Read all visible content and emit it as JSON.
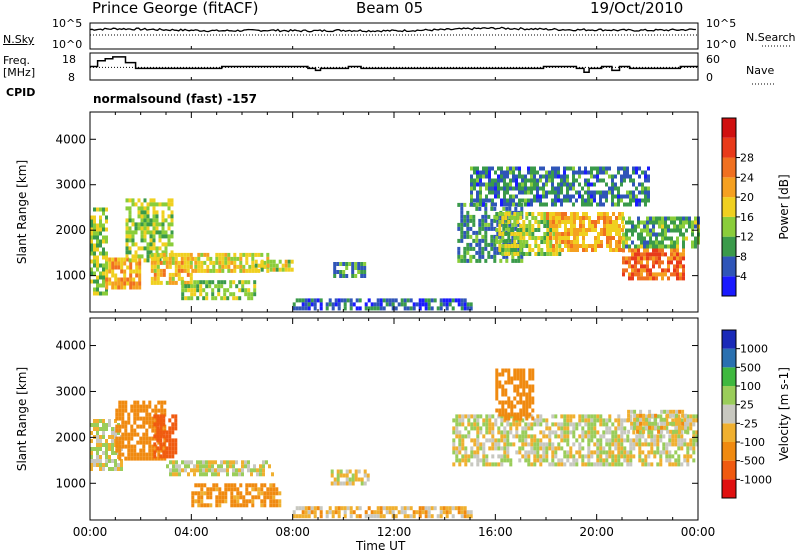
{
  "header": {
    "station": "Prince George (fitACF)",
    "beam": "Beam 05",
    "date": "19/Oct/2010"
  },
  "labels": {
    "nsky": "N.Sky",
    "nsearch": "N.Search",
    "freq_line1": "Freq.",
    "freq_line2": "[MHz]",
    "nave": "Nave",
    "cpid": "CPID",
    "cpid_value": "normalsound (fast) -157"
  },
  "colors": {
    "power": [
      "#1a1aff",
      "#2f55b8",
      "#3a9a4a",
      "#8acd3a",
      "#f0d020",
      "#f5a020",
      "#f07020",
      "#e83a1a",
      "#d01010"
    ],
    "velocity": [
      "#e01010",
      "#f05a10",
      "#f08a10",
      "#f0b030",
      "#c8c8c0",
      "#9acd5a",
      "#3fb83f",
      "#2a70b0",
      "#1a2ab8"
    ]
  },
  "chart_data": [
    {
      "type": "line",
      "panel": "noise",
      "left_ticks": [
        "10^5",
        "10^0"
      ],
      "right_ticks": [
        "10^5",
        "10^0"
      ],
      "series": [
        {
          "name": "N.Sky",
          "style": "solid"
        },
        {
          "name": "N.Search",
          "style": "dotted"
        }
      ],
      "x": [
        0,
        1,
        2,
        3,
        4,
        5,
        6,
        7,
        8,
        9,
        10,
        11,
        12,
        13,
        14,
        15,
        16,
        17,
        18,
        19,
        20,
        21,
        22,
        23,
        24
      ],
      "y_level": [
        0.75,
        0.78,
        0.76,
        0.74,
        0.72,
        0.7,
        0.71,
        0.72,
        0.7,
        0.7,
        0.72,
        0.7,
        0.7,
        0.72,
        0.74,
        0.78,
        0.8,
        0.78,
        0.76,
        0.74,
        0.74,
        0.72,
        0.72,
        0.73,
        0.75
      ]
    },
    {
      "type": "line",
      "panel": "frequency",
      "ylabel_left": "Freq. [MHz]",
      "ylabel_right": "Nave",
      "left_ticks": [
        "18",
        "8"
      ],
      "right_ticks": [
        "60",
        "0"
      ],
      "series": [
        {
          "name": "Freq.",
          "style": "solid",
          "steps": [
            [
              0,
              13
            ],
            [
              0.3,
              16
            ],
            [
              0.6,
              17
            ],
            [
              0.9,
              18
            ],
            [
              1.4,
              15
            ],
            [
              1.8,
              12
            ],
            [
              5.2,
              13
            ],
            [
              8.6,
              12
            ],
            [
              8.9,
              11
            ],
            [
              9.1,
              12
            ],
            [
              10.2,
              13
            ],
            [
              10.7,
              12
            ],
            [
              17.9,
              13
            ],
            [
              19.2,
              12
            ],
            [
              19.5,
              10
            ],
            [
              19.7,
              12
            ],
            [
              20.2,
              13
            ],
            [
              20.6,
              11
            ],
            [
              20.9,
              13
            ],
            [
              21.3,
              12
            ],
            [
              23.3,
              13
            ],
            [
              24,
              13
            ]
          ]
        },
        {
          "name": "Nave",
          "style": "dotted",
          "steps": [
            [
              0,
              28
            ],
            [
              24,
              28
            ]
          ]
        }
      ]
    },
    {
      "type": "heatmap",
      "panel": "power",
      "ylabel": "Slant Range [km]",
      "y_ticks": [
        1000,
        2000,
        3000,
        4000
      ],
      "ylim": [
        200,
        4600
      ],
      "colorbar_label": "Power [dB]",
      "colorbar_ticks": [
        4,
        8,
        12,
        16,
        20,
        24,
        28
      ],
      "x_ticks": [
        "00:00",
        "04:00",
        "08:00",
        "12:00",
        "16:00",
        "20:00",
        "00:00"
      ],
      "xlim_hours": [
        0,
        24
      ],
      "regions": [
        {
          "t0": 0.0,
          "t1": 0.6,
          "r0": 600,
          "r1": 2500,
          "p": 14
        },
        {
          "t0": 0.6,
          "t1": 2.0,
          "r0": 700,
          "r1": 1400,
          "p": 22
        },
        {
          "t0": 1.4,
          "t1": 3.2,
          "r0": 1300,
          "r1": 2700,
          "p": 15
        },
        {
          "t0": 2.4,
          "t1": 4.0,
          "r0": 800,
          "r1": 1500,
          "p": 20
        },
        {
          "t0": 4.0,
          "t1": 7.0,
          "r0": 1100,
          "r1": 1500,
          "p": 17
        },
        {
          "t0": 3.6,
          "t1": 6.5,
          "r0": 500,
          "r1": 900,
          "p": 14
        },
        {
          "t0": 6.5,
          "t1": 8.0,
          "r0": 1100,
          "r1": 1350,
          "p": 16
        },
        {
          "t0": 9.6,
          "t1": 10.8,
          "r0": 1000,
          "r1": 1300,
          "p": 9
        },
        {
          "t0": 8.0,
          "t1": 15.0,
          "r0": 250,
          "r1": 500,
          "p": 6
        },
        {
          "t0": 14.5,
          "t1": 17.0,
          "r0": 1300,
          "r1": 2600,
          "p": 9
        },
        {
          "t0": 16.0,
          "t1": 18.5,
          "r0": 1500,
          "r1": 2400,
          "p": 15
        },
        {
          "t0": 18.0,
          "t1": 21.0,
          "r0": 1600,
          "r1": 2400,
          "p": 21
        },
        {
          "t0": 21.0,
          "t1": 23.4,
          "r0": 900,
          "r1": 1600,
          "p": 26
        },
        {
          "t0": 21.0,
          "t1": 24.0,
          "r0": 1600,
          "r1": 2300,
          "p": 12
        },
        {
          "t0": 15.0,
          "t1": 22.0,
          "r0": 2600,
          "r1": 3400,
          "p": 8
        }
      ]
    },
    {
      "type": "heatmap",
      "panel": "velocity",
      "ylabel": "Slant Range [km]",
      "xlabel": "Time UT",
      "y_ticks": [
        1000,
        2000,
        3000,
        4000
      ],
      "ylim": [
        200,
        4600
      ],
      "colorbar_label": "Velocity [m s-1]",
      "colorbar_ticks": [
        -1000,
        -500,
        -100,
        -25,
        25,
        100,
        500,
        1000
      ],
      "x_ticks": [
        "00:00",
        "04:00",
        "08:00",
        "12:00",
        "16:00",
        "20:00",
        "00:00"
      ],
      "xlim_hours": [
        0,
        24
      ],
      "regions": [
        {
          "t0": 0.0,
          "t1": 1.2,
          "r0": 1300,
          "r1": 2400,
          "v": 0
        },
        {
          "t0": 1.0,
          "t1": 3.0,
          "r0": 1500,
          "r1": 2800,
          "v": -300
        },
        {
          "t0": 2.5,
          "t1": 3.4,
          "r0": 1600,
          "r1": 2500,
          "v": -700
        },
        {
          "t0": 3.0,
          "t1": 7.2,
          "r0": 1200,
          "r1": 1500,
          "v": 0
        },
        {
          "t0": 4.0,
          "t1": 7.5,
          "r0": 500,
          "r1": 1000,
          "v": -150
        },
        {
          "t0": 9.5,
          "t1": 11.0,
          "r0": 1000,
          "r1": 1300,
          "v": 0
        },
        {
          "t0": 8.0,
          "t1": 15.0,
          "r0": 250,
          "r1": 500,
          "v": -60
        },
        {
          "t0": 14.3,
          "t1": 24.0,
          "r0": 1400,
          "r1": 2500,
          "v": 0
        },
        {
          "t0": 16.0,
          "t1": 17.5,
          "r0": 2400,
          "r1": 3500,
          "v": -200
        },
        {
          "t0": 21.2,
          "t1": 23.5,
          "r0": 2100,
          "r1": 2600,
          "v": -30
        }
      ]
    }
  ]
}
